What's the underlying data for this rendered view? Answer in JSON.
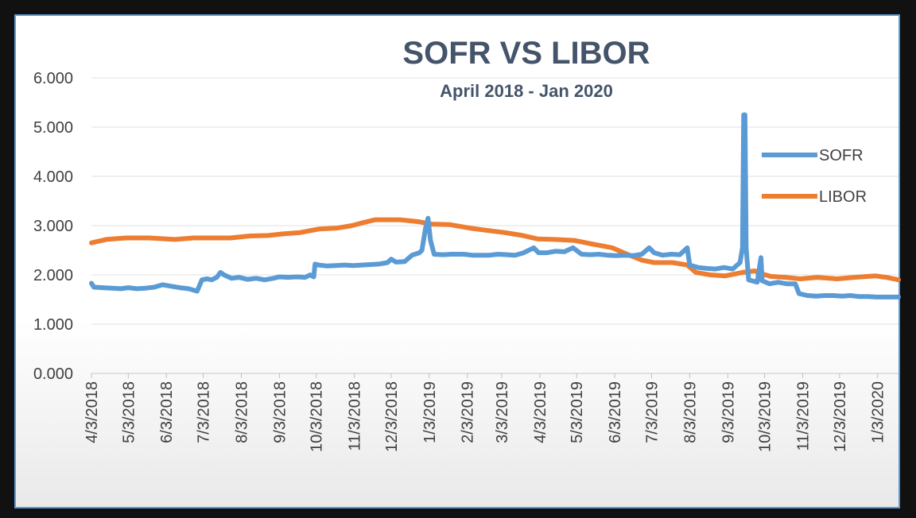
{
  "chart_data": {
    "type": "line",
    "title": "SOFR VS LIBOR",
    "subtitle": "April 2018 - Jan 2020",
    "xlabel": "",
    "ylabel": "",
    "ylim": [
      0,
      6
    ],
    "yticks": [
      "0.000",
      "1.000",
      "2.000",
      "3.000",
      "4.000",
      "5.000",
      "6.000"
    ],
    "xlim": [
      "2018-04-03",
      "2020-01-20"
    ],
    "xtick_labels": [
      "4/3/2018",
      "5/3/2018",
      "6/3/2018",
      "7/3/2018",
      "8/3/2018",
      "9/3/2018",
      "10/3/2018",
      "11/3/2018",
      "12/3/2018",
      "1/3/2019",
      "2/3/2019",
      "3/3/2019",
      "4/3/2019",
      "5/3/2019",
      "6/3/2019",
      "7/3/2019",
      "8/3/2019",
      "9/3/2019",
      "10/3/2019",
      "11/3/2019",
      "12/3/2019",
      "1/3/2020"
    ],
    "grid": true,
    "legend_position": "right",
    "series": [
      {
        "name": "SOFR",
        "color": "#5b9bd5",
        "points": [
          [
            "2018-04-03",
            1.83
          ],
          [
            "2018-04-05",
            1.75
          ],
          [
            "2018-04-12",
            1.74
          ],
          [
            "2018-04-20",
            1.73
          ],
          [
            "2018-04-27",
            1.72
          ],
          [
            "2018-05-03",
            1.74
          ],
          [
            "2018-05-10",
            1.72
          ],
          [
            "2018-05-17",
            1.73
          ],
          [
            "2018-05-24",
            1.75
          ],
          [
            "2018-05-31",
            1.8
          ],
          [
            "2018-06-07",
            1.77
          ],
          [
            "2018-06-14",
            1.74
          ],
          [
            "2018-06-21",
            1.72
          ],
          [
            "2018-06-28",
            1.67
          ],
          [
            "2018-07-02",
            1.9
          ],
          [
            "2018-07-06",
            1.92
          ],
          [
            "2018-07-10",
            1.9
          ],
          [
            "2018-07-14",
            1.95
          ],
          [
            "2018-07-17",
            2.05
          ],
          [
            "2018-07-20",
            2.0
          ],
          [
            "2018-07-26",
            1.93
          ],
          [
            "2018-08-01",
            1.95
          ],
          [
            "2018-08-08",
            1.91
          ],
          [
            "2018-08-15",
            1.93
          ],
          [
            "2018-08-22",
            1.9
          ],
          [
            "2018-08-29",
            1.93
          ],
          [
            "2018-09-03",
            1.96
          ],
          [
            "2018-09-10",
            1.95
          ],
          [
            "2018-09-17",
            1.96
          ],
          [
            "2018-09-24",
            1.95
          ],
          [
            "2018-09-28",
            2.0
          ],
          [
            "2018-10-01",
            1.96
          ],
          [
            "2018-10-02",
            2.22
          ],
          [
            "2018-10-05",
            2.2
          ],
          [
            "2018-10-12",
            2.18
          ],
          [
            "2018-10-19",
            2.19
          ],
          [
            "2018-10-26",
            2.2
          ],
          [
            "2018-11-02",
            2.19
          ],
          [
            "2018-11-09",
            2.2
          ],
          [
            "2018-11-16",
            2.21
          ],
          [
            "2018-11-23",
            2.22
          ],
          [
            "2018-11-30",
            2.25
          ],
          [
            "2018-12-03",
            2.32
          ],
          [
            "2018-12-07",
            2.26
          ],
          [
            "2018-12-14",
            2.27
          ],
          [
            "2018-12-20",
            2.4
          ],
          [
            "2018-12-26",
            2.45
          ],
          [
            "2018-12-28",
            2.5
          ],
          [
            "2018-12-31",
            2.95
          ],
          [
            "2019-01-02",
            3.15
          ],
          [
            "2019-01-04",
            2.7
          ],
          [
            "2019-01-07",
            2.42
          ],
          [
            "2019-01-14",
            2.41
          ],
          [
            "2019-01-21",
            2.42
          ],
          [
            "2019-01-31",
            2.42
          ],
          [
            "2019-02-07",
            2.4
          ],
          [
            "2019-02-14",
            2.4
          ],
          [
            "2019-02-21",
            2.4
          ],
          [
            "2019-02-28",
            2.42
          ],
          [
            "2019-03-07",
            2.41
          ],
          [
            "2019-03-14",
            2.4
          ],
          [
            "2019-03-21",
            2.45
          ],
          [
            "2019-03-29",
            2.55
          ],
          [
            "2019-04-02",
            2.45
          ],
          [
            "2019-04-09",
            2.45
          ],
          [
            "2019-04-16",
            2.48
          ],
          [
            "2019-04-23",
            2.47
          ],
          [
            "2019-04-30",
            2.55
          ],
          [
            "2019-05-07",
            2.42
          ],
          [
            "2019-05-14",
            2.41
          ],
          [
            "2019-05-21",
            2.42
          ],
          [
            "2019-05-28",
            2.4
          ],
          [
            "2019-06-04",
            2.39
          ],
          [
            "2019-06-11",
            2.4
          ],
          [
            "2019-06-18",
            2.39
          ],
          [
            "2019-06-25",
            2.42
          ],
          [
            "2019-07-01",
            2.55
          ],
          [
            "2019-07-05",
            2.45
          ],
          [
            "2019-07-12",
            2.4
          ],
          [
            "2019-07-19",
            2.42
          ],
          [
            "2019-07-26",
            2.41
          ],
          [
            "2019-08-01",
            2.55
          ],
          [
            "2019-08-03",
            2.2
          ],
          [
            "2019-08-10",
            2.15
          ],
          [
            "2019-08-17",
            2.13
          ],
          [
            "2019-08-24",
            2.12
          ],
          [
            "2019-08-31",
            2.15
          ],
          [
            "2019-09-07",
            2.12
          ],
          [
            "2019-09-13",
            2.25
          ],
          [
            "2019-09-15",
            2.55
          ],
          [
            "2019-09-16",
            5.25
          ],
          [
            "2019-09-17",
            5.25
          ],
          [
            "2019-09-18",
            2.55
          ],
          [
            "2019-09-20",
            1.9
          ],
          [
            "2019-09-27",
            1.85
          ],
          [
            "2019-09-30",
            2.35
          ],
          [
            "2019-10-01",
            1.88
          ],
          [
            "2019-10-07",
            1.82
          ],
          [
            "2019-10-14",
            1.85
          ],
          [
            "2019-10-21",
            1.82
          ],
          [
            "2019-10-28",
            1.82
          ],
          [
            "2019-10-31",
            1.62
          ],
          [
            "2019-11-07",
            1.58
          ],
          [
            "2019-11-14",
            1.57
          ],
          [
            "2019-11-21",
            1.58
          ],
          [
            "2019-11-28",
            1.58
          ],
          [
            "2019-12-05",
            1.57
          ],
          [
            "2019-12-12",
            1.58
          ],
          [
            "2019-12-19",
            1.56
          ],
          [
            "2019-12-26",
            1.56
          ],
          [
            "2020-01-02",
            1.55
          ],
          [
            "2020-01-09",
            1.55
          ],
          [
            "2020-01-16",
            1.55
          ],
          [
            "2020-01-20",
            1.55
          ]
        ]
      },
      {
        "name": "LIBOR",
        "color": "#ed7d31",
        "points": [
          [
            "2018-04-03",
            2.65
          ],
          [
            "2018-04-15",
            2.72
          ],
          [
            "2018-05-01",
            2.75
          ],
          [
            "2018-05-20",
            2.75
          ],
          [
            "2018-06-10",
            2.72
          ],
          [
            "2018-06-25",
            2.75
          ],
          [
            "2018-07-10",
            2.75
          ],
          [
            "2018-07-25",
            2.75
          ],
          [
            "2018-08-10",
            2.79
          ],
          [
            "2018-08-25",
            2.8
          ],
          [
            "2018-09-05",
            2.83
          ],
          [
            "2018-09-20",
            2.86
          ],
          [
            "2018-10-05",
            2.93
          ],
          [
            "2018-10-20",
            2.95
          ],
          [
            "2018-11-01",
            3.0
          ],
          [
            "2018-11-10",
            3.06
          ],
          [
            "2018-11-20",
            3.12
          ],
          [
            "2018-12-01",
            3.12
          ],
          [
            "2018-12-10",
            3.12
          ],
          [
            "2018-12-25",
            3.08
          ],
          [
            "2019-01-05",
            3.03
          ],
          [
            "2019-01-20",
            3.02
          ],
          [
            "2019-02-05",
            2.95
          ],
          [
            "2019-02-20",
            2.9
          ],
          [
            "2019-03-05",
            2.86
          ],
          [
            "2019-03-20",
            2.8
          ],
          [
            "2019-04-01",
            2.73
          ],
          [
            "2019-04-15",
            2.72
          ],
          [
            "2019-05-01",
            2.7
          ],
          [
            "2019-05-15",
            2.63
          ],
          [
            "2019-06-01",
            2.55
          ],
          [
            "2019-06-15",
            2.4
          ],
          [
            "2019-06-25",
            2.3
          ],
          [
            "2019-07-05",
            2.25
          ],
          [
            "2019-07-20",
            2.25
          ],
          [
            "2019-08-01",
            2.2
          ],
          [
            "2019-08-08",
            2.05
          ],
          [
            "2019-08-20",
            2.0
          ],
          [
            "2019-09-01",
            1.98
          ],
          [
            "2019-09-15",
            2.05
          ],
          [
            "2019-09-25",
            2.08
          ],
          [
            "2019-10-01",
            2.02
          ],
          [
            "2019-10-08",
            1.97
          ],
          [
            "2019-10-20",
            1.95
          ],
          [
            "2019-11-01",
            1.92
          ],
          [
            "2019-11-15",
            1.95
          ],
          [
            "2019-12-01",
            1.92
          ],
          [
            "2019-12-15",
            1.95
          ],
          [
            "2020-01-01",
            1.98
          ],
          [
            "2020-01-10",
            1.95
          ],
          [
            "2020-01-20",
            1.9
          ]
        ]
      }
    ]
  }
}
